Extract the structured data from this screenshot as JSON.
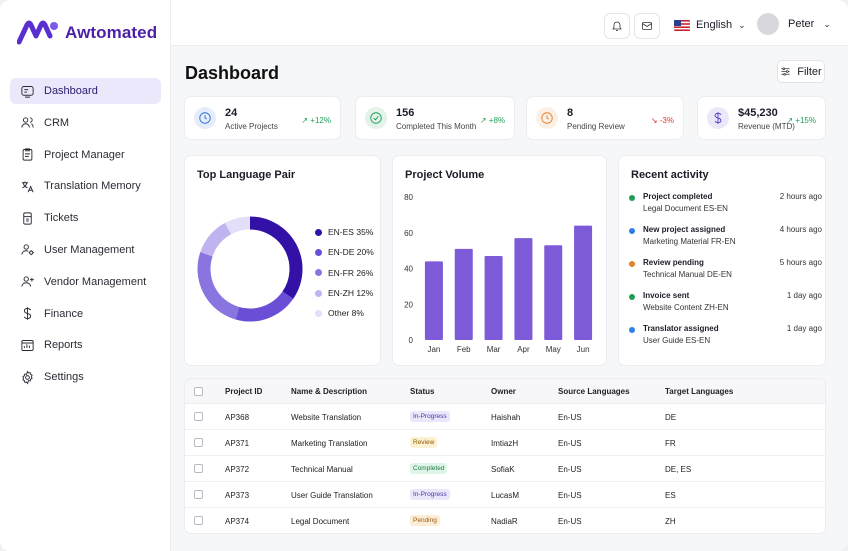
{
  "app": {
    "name": "Awtomated"
  },
  "sidebar": {
    "items": [
      {
        "label": "Dashboard",
        "icon": "dashboard-icon",
        "active": true
      },
      {
        "label": "CRM",
        "icon": "users-icon"
      },
      {
        "label": "Project Manager",
        "icon": "clipboard-icon"
      },
      {
        "label": "Translation Memory",
        "icon": "translate-icon"
      },
      {
        "label": "Tickets",
        "icon": "ticket-icon"
      },
      {
        "label": "User Management",
        "icon": "user-settings-icon"
      },
      {
        "label": "Vendor Management",
        "icon": "user-plus-icon"
      },
      {
        "label": "Finance",
        "icon": "dollar-icon"
      },
      {
        "label": "Reports",
        "icon": "reports-icon"
      },
      {
        "label": "Settings",
        "icon": "gear-icon"
      }
    ]
  },
  "topbar": {
    "language": "English",
    "user_name": "Peter"
  },
  "page": {
    "title": "Dashboard",
    "filter_label": "Filter"
  },
  "stats": [
    {
      "value": "24",
      "label": "Active Projects",
      "trend": "+12%",
      "direction": "up",
      "icon": "clock-icon",
      "color": "#2f6fd6"
    },
    {
      "value": "156",
      "label": "Completed This Month",
      "trend": "+8%",
      "direction": "up",
      "icon": "check-circle-icon",
      "color": "#1f9d55"
    },
    {
      "value": "8",
      "label": "Pending Review",
      "trend": "-3%",
      "direction": "down",
      "icon": "clock-icon",
      "color": "#e0822b"
    },
    {
      "value": "$45,230",
      "label": "Revenue (MTD)",
      "trend": "+15%",
      "direction": "up",
      "icon": "dollar-icon",
      "color": "#5b3fc9"
    }
  ],
  "language_pair": {
    "title": "Top Language Pair",
    "legend": [
      {
        "label": "EN-ES 35%",
        "value": 35,
        "color": "#3311a6"
      },
      {
        "label": "EN-DE 20%",
        "value": 20,
        "color": "#6a4fd6"
      },
      {
        "label": "EN-FR 26%",
        "value": 26,
        "color": "#8a74e0"
      },
      {
        "label": "EN-ZH 12%",
        "value": 12,
        "color": "#c0b3f0"
      },
      {
        "label": "Other 8%",
        "value": 8,
        "color": "#e4dff9"
      }
    ]
  },
  "chart_data": {
    "type": "bar",
    "title": "Project Volume",
    "categories": [
      "Jan",
      "Feb",
      "Mar",
      "Apr",
      "May",
      "Jun"
    ],
    "values": [
      44,
      51,
      47,
      57,
      53,
      64
    ],
    "ylim": [
      0,
      80
    ],
    "yticks": [
      "0",
      "20",
      "40",
      "60",
      "80"
    ],
    "color": "#7d5ad8"
  },
  "activity": {
    "title": "Recent activity",
    "items": [
      {
        "title": "Project completed",
        "subtitle": "Legal Document ES-EN",
        "time": "2 hours ago",
        "color": "#1f9d55"
      },
      {
        "title": "New project assigned",
        "subtitle": "Marketing Material FR-EN",
        "time": "4 hours ago",
        "color": "#2f7fe6"
      },
      {
        "title": "Review pending",
        "subtitle": "Technical Manual DE-EN",
        "time": "5 hours ago",
        "color": "#e0822b"
      },
      {
        "title": "Invoice sent",
        "subtitle": "Website Content ZH-EN",
        "time": "1 day ago",
        "color": "#1f9d55"
      },
      {
        "title": "Translator assigned",
        "subtitle": "User Guide ES-EN",
        "time": "1 day ago",
        "color": "#2f7fe6"
      }
    ]
  },
  "table": {
    "headers": [
      "Project ID",
      "Name & Description",
      "Status",
      "Owner",
      "Source Languages",
      "Target Languages"
    ],
    "rows": [
      {
        "id": "AP368",
        "name": "Website Translation",
        "status": "In-Progress",
        "owner": "Haishah",
        "source": "En-US",
        "target": "DE"
      },
      {
        "id": "AP371",
        "name": "Marketing Translation",
        "status": "Review",
        "owner": "ImtiazH",
        "source": "En-US",
        "target": "FR"
      },
      {
        "id": "AP372",
        "name": "Technical Manual",
        "status": "Completed",
        "owner": "SofiaK",
        "source": "En-US",
        "target": "DE, ES"
      },
      {
        "id": "AP373",
        "name": "User Guide Translation",
        "status": "In-Progress",
        "owner": "LucasM",
        "source": "En-US",
        "target": "ES"
      },
      {
        "id": "AP374",
        "name": "Legal Document",
        "status": "Pending",
        "owner": "NadiaR",
        "source": "En-US",
        "target": "ZH"
      }
    ]
  },
  "status_colors": {
    "In-Progress": {
      "bg": "#ebe7fb",
      "fg": "#4a34a8"
    },
    "Review": {
      "bg": "#fdf1d4",
      "fg": "#8a5a00"
    },
    "Completed": {
      "bg": "#dff5e8",
      "fg": "#1e7a45"
    },
    "Pending": {
      "bg": "#fdecd6",
      "fg": "#9a5a12"
    }
  },
  "trend_colors": {
    "up": "#1f9d55",
    "down": "#d93636"
  }
}
